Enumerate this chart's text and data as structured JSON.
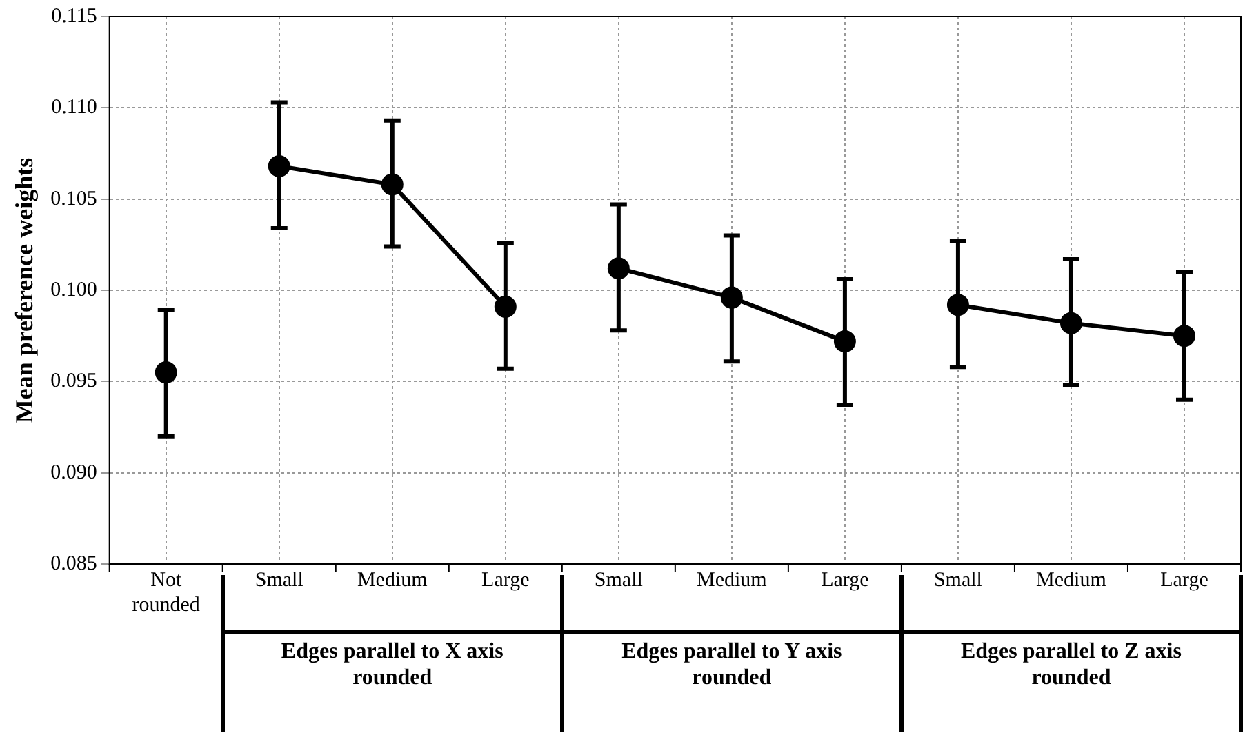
{
  "chart_data": {
    "type": "line",
    "ylabel": "Mean preference weights",
    "categories": [
      "Not rounded",
      "Small",
      "Medium",
      "Large",
      "Small",
      "Medium",
      "Large",
      "Small",
      "Medium",
      "Large"
    ],
    "series": [
      {
        "color": "#000000",
        "values": [
          0.0955,
          null,
          null,
          null,
          null,
          null,
          null,
          null,
          null,
          null
        ],
        "errors": [
          [
            0.092,
            0.0989
          ],
          null,
          null,
          null,
          null,
          null,
          null,
          null,
          null,
          null
        ]
      },
      {
        "color": "#000000",
        "values": [
          null,
          0.1068,
          0.1058,
          0.0991,
          null,
          null,
          null,
          null,
          null,
          null
        ],
        "errors": [
          null,
          [
            0.1034,
            0.1103
          ],
          [
            0.1024,
            0.1093
          ],
          [
            0.0957,
            0.1026
          ],
          null,
          null,
          null,
          null,
          null,
          null
        ]
      },
      {
        "color": "#000000",
        "values": [
          null,
          null,
          null,
          null,
          0.1012,
          0.0996,
          0.0972,
          null,
          null,
          null
        ],
        "errors": [
          null,
          null,
          null,
          null,
          [
            0.0978,
            0.1047
          ],
          [
            0.0961,
            0.103
          ],
          [
            0.0937,
            0.1006
          ],
          null,
          null,
          null
        ]
      },
      {
        "color": "#000000",
        "values": [
          null,
          null,
          null,
          null,
          null,
          null,
          null,
          0.0992,
          0.0982,
          0.0975
        ],
        "errors": [
          null,
          null,
          null,
          null,
          null,
          null,
          null,
          [
            0.0958,
            0.1027
          ],
          [
            0.0948,
            0.1017
          ],
          [
            0.094,
            0.101
          ]
        ]
      }
    ],
    "ylim": [
      0.085,
      0.115
    ],
    "yticks": [
      {
        "value": 0.085,
        "label": "0.085"
      },
      {
        "value": 0.09,
        "label": "0.090"
      },
      {
        "value": 0.095,
        "label": "0.095"
      },
      {
        "value": 0.1,
        "label": "0.100"
      },
      {
        "value": 0.105,
        "label": "0.105"
      },
      {
        "value": 0.11,
        "label": "0.110"
      },
      {
        "value": 0.115,
        "label": "0.115"
      }
    ],
    "annotations": [
      "Edges parallel to X axis rounded",
      "Edges parallel to Y axis rounded",
      "Edges parallel to Z axis rounded"
    ],
    "grid": true,
    "legend": false,
    "marker": "circle",
    "line_style": "solid"
  }
}
